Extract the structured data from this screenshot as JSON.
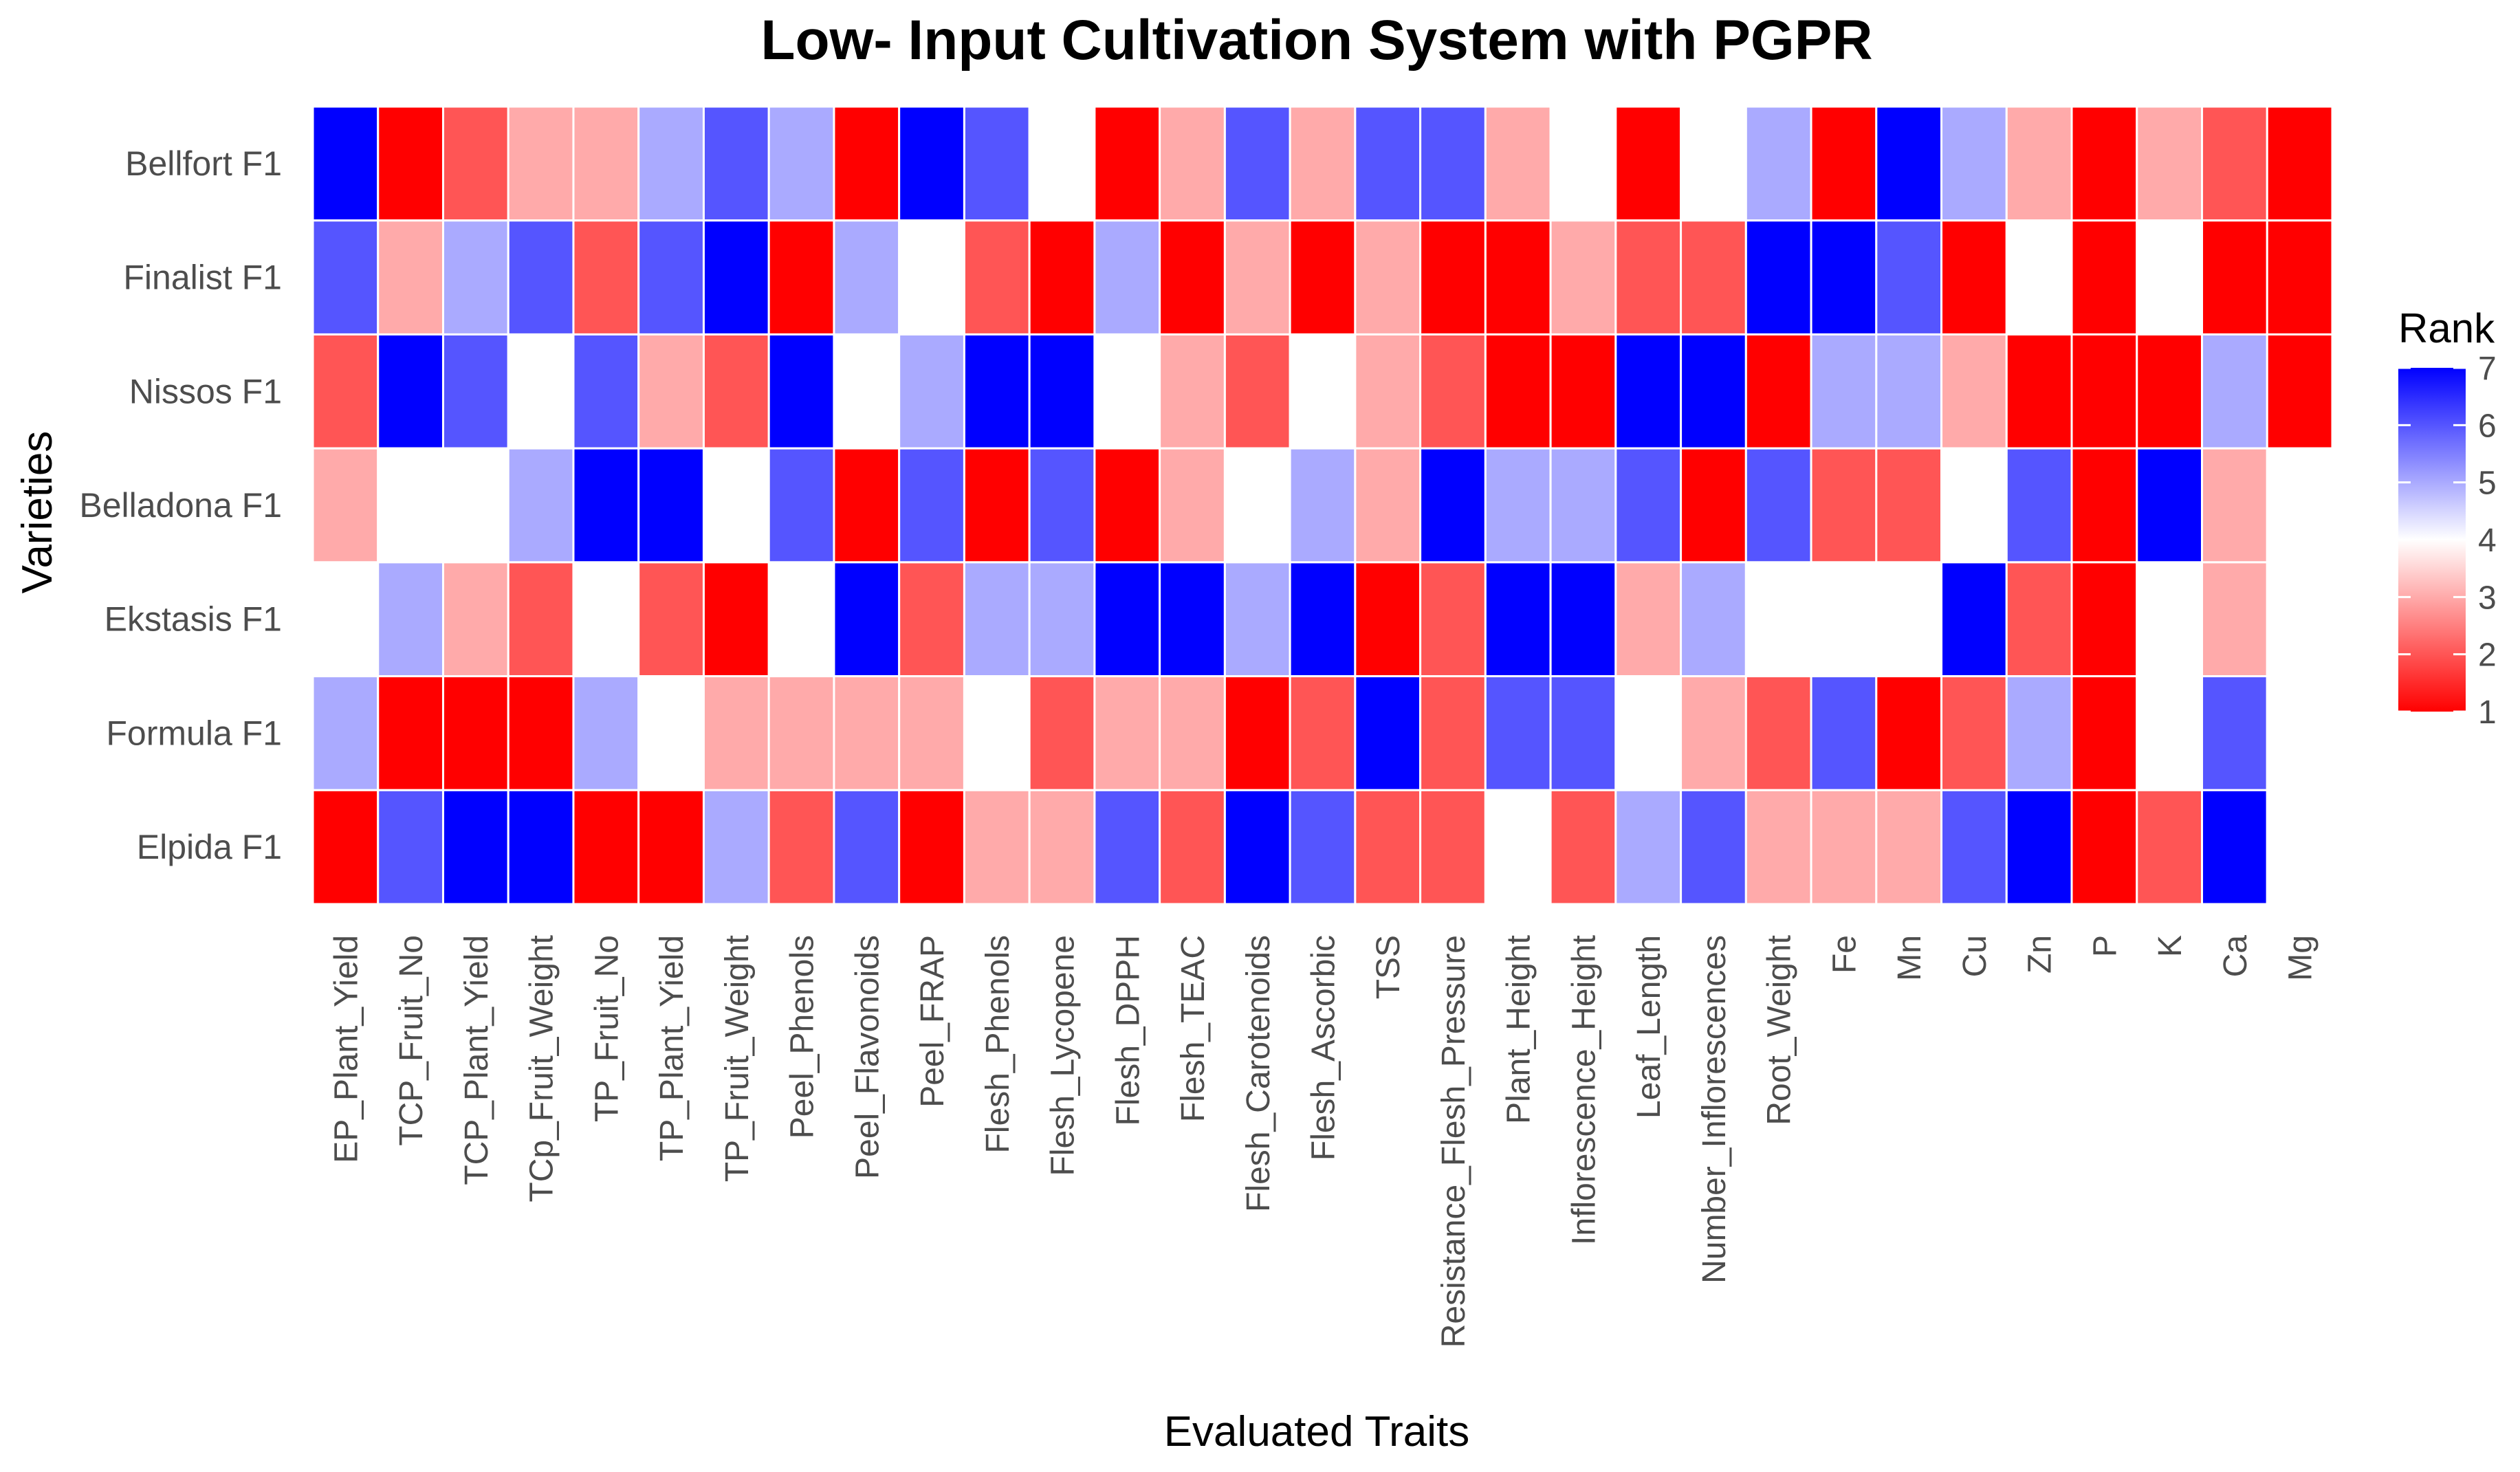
{
  "chart_data": {
    "type": "heatmap",
    "title": "Low- Input Cultivation System with PGPR",
    "xlabel": "Evaluated Traits",
    "ylabel": "Varieties",
    "x": [
      "EP_Plant_Yield",
      "TCP_Fruit_No",
      "TCP_Plant_Yield",
      "TCp_Fruit_Weight",
      "TP_Fruit_No",
      "TP_Plant_Yield",
      "TP_Fruit_Weight",
      "Peel_Phenols",
      "Peel_Flavonoids",
      "Peel_FRAP",
      "Flesh_Phenols",
      "Flesh_Lycopene",
      "Flesh_DPPH",
      "Flesh_TEAC",
      "Flesh_Carotenoids",
      "Flesh_Ascorbic",
      "TSS",
      "Resistance_Flesh_Pressure",
      "Plant_Height",
      "Inflorescence_Height",
      "Leaf_Length",
      "Number_Inflorescences",
      "Root_Weight",
      "Fe",
      "Mn",
      "Cu",
      "Zn",
      "P",
      "K",
      "Ca",
      "Mg"
    ],
    "y": [
      "Bellfort F1",
      "Finalist F1",
      "Nissos F1",
      "Belladona F1",
      "Ekstasis F1",
      "Formula F1",
      "Elpida F1"
    ],
    "values": [
      [
        7,
        1,
        2,
        3,
        3,
        5,
        6,
        5,
        1,
        7,
        6,
        4,
        1,
        3,
        6,
        3,
        6,
        6,
        3,
        4,
        1,
        4,
        5,
        1,
        7,
        5,
        3,
        1,
        3,
        2,
        1
      ],
      [
        6,
        3,
        5,
        6,
        2,
        6,
        7,
        1,
        5,
        4,
        2,
        1,
        5,
        1,
        3,
        1,
        3,
        1,
        1,
        3,
        2,
        2,
        7,
        7,
        6,
        1,
        4,
        1,
        4,
        1,
        1
      ],
      [
        2,
        7,
        6,
        4,
        6,
        3,
        2,
        7,
        4,
        5,
        7,
        7,
        4,
        3,
        2,
        4,
        3,
        2,
        1,
        1,
        7,
        7,
        1,
        5,
        5,
        3,
        1,
        1,
        1,
        5,
        1
      ],
      [
        3,
        4,
        4,
        5,
        7,
        7,
        4,
        6,
        1,
        6,
        1,
        6,
        1,
        3,
        4,
        5,
        3,
        7,
        5,
        5,
        6,
        1,
        6,
        2,
        2,
        4,
        6,
        1,
        7,
        3,
        4
      ],
      [
        4,
        5,
        3,
        2,
        4,
        2,
        1,
        4,
        7,
        2,
        5,
        5,
        7,
        7,
        5,
        7,
        1,
        2,
        7,
        7,
        3,
        5,
        4,
        4,
        4,
        7,
        2,
        1,
        4,
        3,
        4
      ],
      [
        5,
        1,
        1,
        1,
        5,
        4,
        3,
        3,
        3,
        3,
        4,
        2,
        3,
        3,
        1,
        2,
        7,
        2,
        6,
        6,
        4,
        3,
        2,
        6,
        1,
        2,
        5,
        1,
        4,
        6,
        4
      ],
      [
        1,
        6,
        7,
        7,
        1,
        1,
        5,
        2,
        6,
        1,
        3,
        3,
        6,
        2,
        7,
        6,
        2,
        2,
        4,
        2,
        5,
        6,
        3,
        3,
        3,
        6,
        7,
        1,
        2,
        7,
        4
      ]
    ],
    "legend": {
      "title": "Rank",
      "ticks": [
        7,
        6,
        5,
        4,
        3,
        2,
        1
      ],
      "range": [
        1,
        7
      ],
      "position": "right",
      "colors": {
        "low": "#ff0000",
        "mid": "#ffffff",
        "high": "#0000ff"
      }
    }
  }
}
